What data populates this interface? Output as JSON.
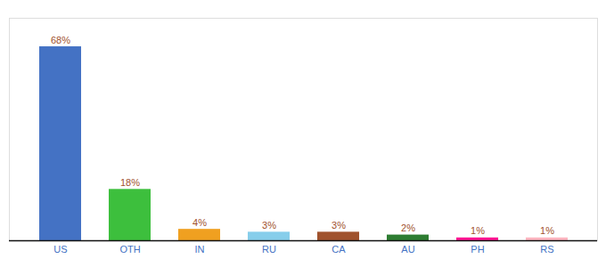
{
  "chart_data": {
    "type": "bar",
    "categories": [
      "US",
      "OTH",
      "IN",
      "RU",
      "CA",
      "AU",
      "PH",
      "RS"
    ],
    "values": [
      68,
      18,
      4,
      3,
      3,
      2,
      1,
      1
    ],
    "value_labels": [
      "68%",
      "18%",
      "4%",
      "3%",
      "3%",
      "2%",
      "1%",
      "1%"
    ],
    "colors": [
      "#4472C4",
      "#3DBF3D",
      "#F0A020",
      "#87CEEB",
      "#A0522D",
      "#2E7D32",
      "#FF1493",
      "#FFB6C1"
    ],
    "ylim": [
      0,
      78
    ],
    "data_labels": true,
    "tick_labels": "x",
    "grid": false
  }
}
